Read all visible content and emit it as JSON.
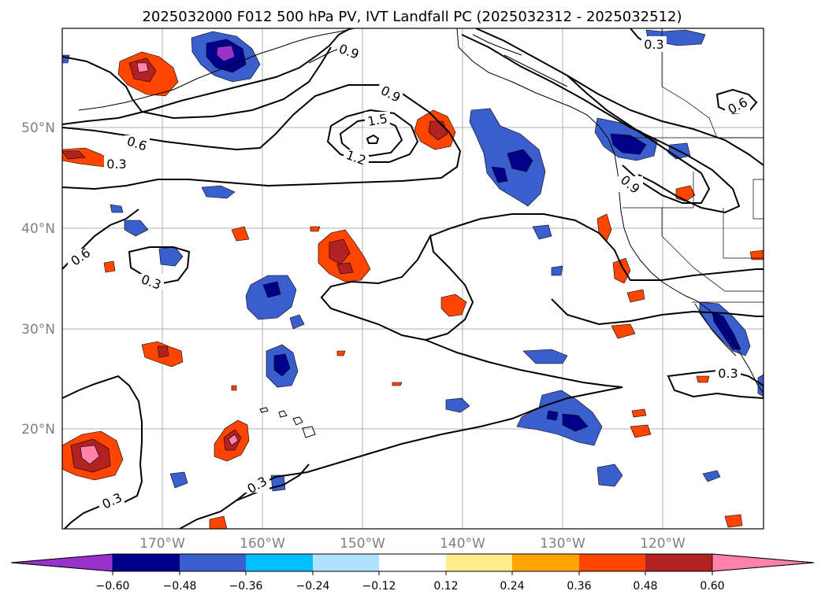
{
  "title": "2025032000 F012 500 hPa PV, IVT Landfall PC (2025032312 - 2025032512)",
  "lat_labels": [
    "50°N",
    "40°N",
    "30°N",
    "20°N"
  ],
  "lon_labels": [
    "170°W",
    "160°W",
    "150°W",
    "140°W",
    "130°W",
    "120°W"
  ],
  "colorbar": {
    "colors": [
      "#9932cc",
      "#00008b",
      "#3a5fcd",
      "#00bfff",
      "#b0e2ff",
      "#ffffff",
      "#ffec8b",
      "#ffa500",
      "#ff4500",
      "#b22222",
      "#ff82ab"
    ],
    "ticks": [
      "−0.60",
      "−0.48",
      "−0.36",
      "−0.24",
      "−0.12",
      "0.12",
      "0.24",
      "0.36",
      "0.48",
      "0.60"
    ]
  },
  "contour_labels": [
    "0.9",
    "0.9",
    "1.5",
    "1.2",
    "0.6",
    "0.3",
    "0.6",
    "0.3",
    "0.3",
    "0.3",
    "0.3",
    "0.9",
    "0.6",
    "0.3"
  ]
}
